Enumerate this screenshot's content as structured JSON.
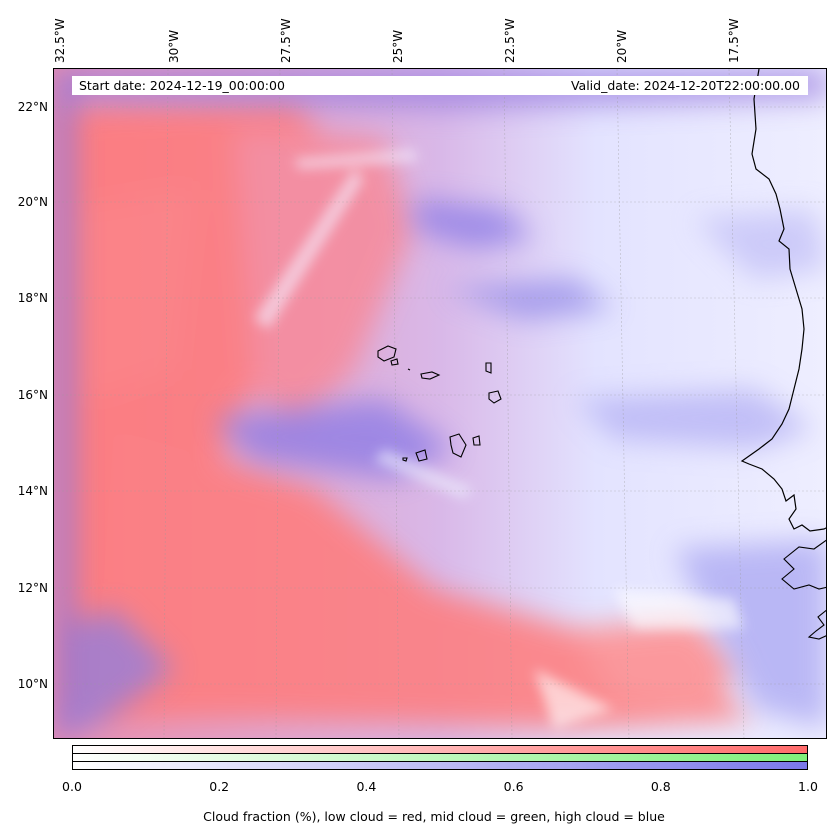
{
  "map": {
    "lon_ticks": [
      "32.5°W",
      "30°W",
      "27.5°W",
      "25°W",
      "22.5°W",
      "20°W",
      "17.5°W"
    ],
    "lat_ticks": [
      "22°N",
      "20°N",
      "18°N",
      "16°N",
      "14°N",
      "12°N",
      "10°N"
    ],
    "extent": {
      "lon_min": -32.5,
      "lon_max": -15.3,
      "lat_min": 8.9,
      "lat_max": 22.8
    }
  },
  "info": {
    "start_date": "Start date: 2024-12-19_00:00:00",
    "valid_date": "Valid_date: 2024-12-20T22:00:00.00"
  },
  "colorbar": {
    "ticks": [
      "0.0",
      "0.2",
      "0.4",
      "0.6",
      "0.8",
      "1.0"
    ],
    "label": "Cloud fraction (%), low cloud = red, mid cloud = green, high cloud = blue",
    "colors": {
      "low": "#ff6b6b",
      "mid": "#7ff07a",
      "high": "#7b78ea"
    }
  }
}
